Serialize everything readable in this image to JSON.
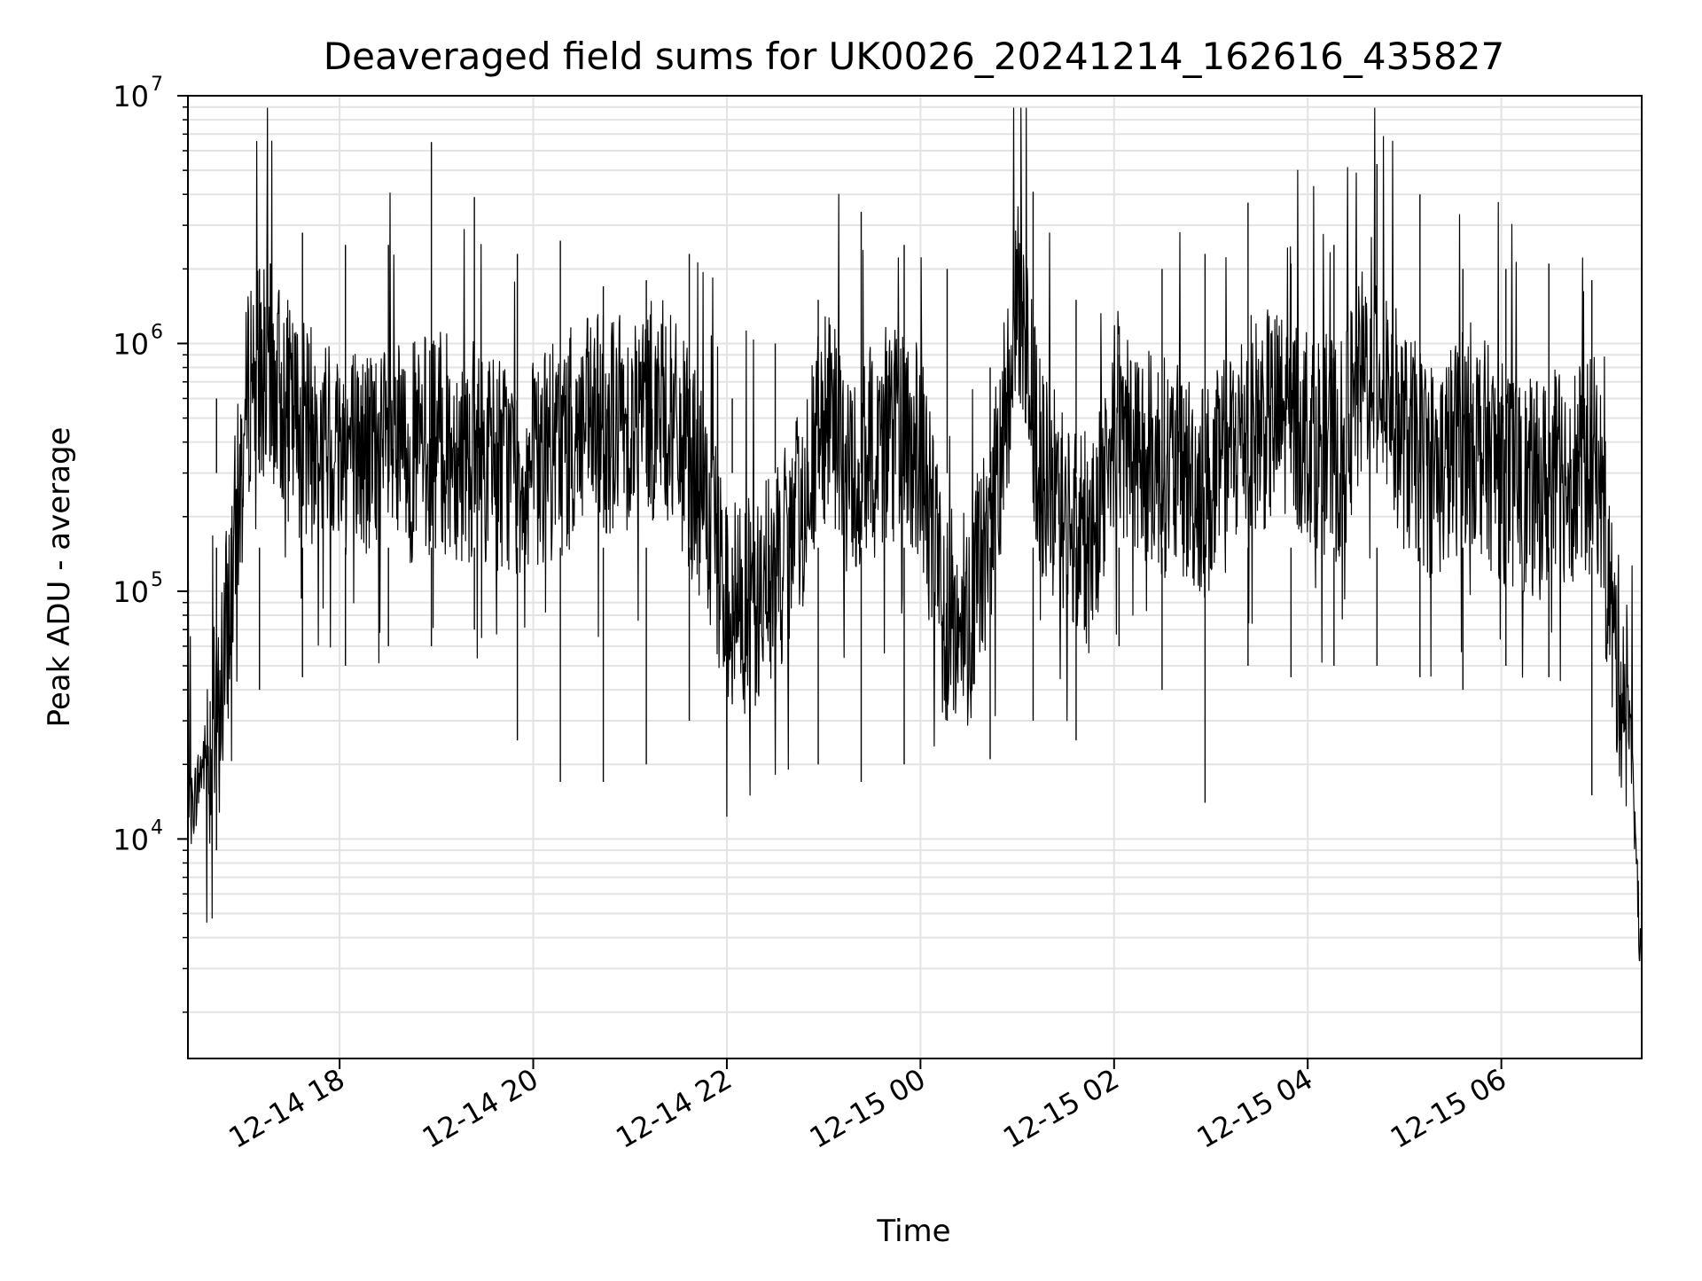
{
  "chart_data": {
    "type": "line",
    "title": "Deaveraged field sums for UK0026_20241214_162616_435827",
    "xlabel": "Time",
    "ylabel": "Peak ADU - average",
    "y_scale": "log",
    "ylim": [
      1300,
      10000000
    ],
    "xlim": [
      "2024-12-14 16:26",
      "2024-12-15 07:27"
    ],
    "grid": true,
    "line_color": "#000000",
    "x_ticks": [
      "12-14 18",
      "12-14 20",
      "12-14 22",
      "12-15 00",
      "12-15 02",
      "12-15 04",
      "12-15 06"
    ],
    "y_ticks": [
      {
        "base": "10",
        "exp": "4",
        "value": 10000
      },
      {
        "base": "10",
        "exp": "5",
        "value": 100000
      },
      {
        "base": "10",
        "exp": "6",
        "value": 1000000
      },
      {
        "base": "10",
        "exp": "7",
        "value": 10000000
      }
    ],
    "series": [
      {
        "x": [
          "2024-12-14 16:27",
          "2024-12-14 16:35",
          "2024-12-14 16:45",
          "2024-12-14 16:55",
          "2024-12-14 17:05",
          "2024-12-14 17:15",
          "2024-12-14 17:30",
          "2024-12-14 17:45",
          "2024-12-14 18:00",
          "2024-12-14 18:20",
          "2024-12-14 18:40",
          "2024-12-14 19:00",
          "2024-12-14 19:30",
          "2024-12-14 20:00",
          "2024-12-14 20:30",
          "2024-12-14 21:00",
          "2024-12-14 21:20",
          "2024-12-14 21:40",
          "2024-12-14 22:00",
          "2024-12-14 22:20",
          "2024-12-14 22:40",
          "2024-12-14 23:00",
          "2024-12-14 23:20",
          "2024-12-14 23:40",
          "2024-12-15 00:00",
          "2024-12-15 00:15",
          "2024-12-15 00:30",
          "2024-12-15 00:45",
          "2024-12-15 01:00",
          "2024-12-15 01:15",
          "2024-12-15 01:30",
          "2024-12-15 01:45",
          "2024-12-15 02:00",
          "2024-12-15 02:20",
          "2024-12-15 02:40",
          "2024-12-15 03:00",
          "2024-12-15 03:20",
          "2024-12-15 03:40",
          "2024-12-15 04:00",
          "2024-12-15 04:20",
          "2024-12-15 04:40",
          "2024-12-15 05:00",
          "2024-12-15 05:20",
          "2024-12-15 05:40",
          "2024-12-15 06:00",
          "2024-12-15 06:20",
          "2024-12-15 06:40",
          "2024-12-15 07:00",
          "2024-12-15 07:10",
          "2024-12-15 07:20",
          "2024-12-15 07:27"
        ],
        "y": [
          12000,
          20000,
          30000,
          150000,
          800000,
          800000,
          500000,
          400000,
          400000,
          350000,
          350000,
          400000,
          350000,
          300000,
          450000,
          500000,
          550000,
          300000,
          90000,
          90000,
          150000,
          500000,
          280000,
          450000,
          350000,
          80000,
          80000,
          200000,
          1500000,
          300000,
          200000,
          150000,
          500000,
          350000,
          300000,
          250000,
          450000,
          500000,
          450000,
          350000,
          1000000,
          400000,
          300000,
          450000,
          300000,
          250000,
          300000,
          320000,
          60000,
          30000,
          2500
        ],
        "highs": [
          600000,
          2000000,
          2800000,
          2500000,
          2500000,
          6500000,
          3900000,
          2300000,
          2600000,
          1700000,
          1800000,
          2300000,
          600000,
          1000000,
          1500000,
          3400000,
          2500000,
          2000000,
          800000,
          4100000,
          1500000,
          900000,
          2000000,
          2300000,
          3700000,
          2100000,
          2500000,
          5300000,
          4000000,
          2000000,
          2000000,
          2100000,
          1800000
        ],
        "lows": [
          9000,
          40000,
          45000,
          50000,
          60000,
          60000,
          70000,
          25000,
          17000,
          17000,
          20000,
          30000,
          35000,
          40000,
          20000,
          17000,
          20000,
          30000,
          21000,
          30000,
          25000,
          60000,
          40000,
          14000,
          50000,
          45000,
          50000,
          50000,
          45000,
          40000,
          50000,
          45000,
          15000
        ]
      }
    ]
  }
}
